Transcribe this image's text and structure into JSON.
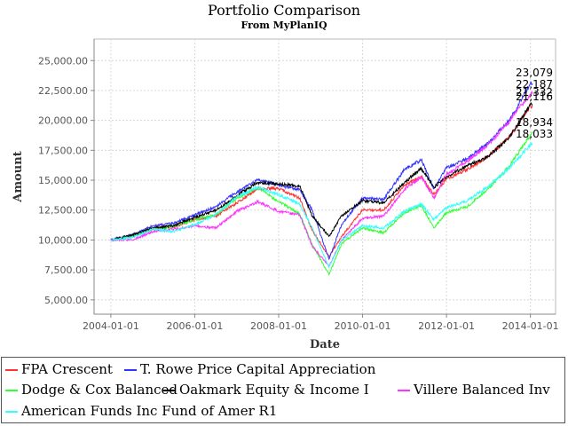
{
  "chart_data": {
    "type": "line",
    "title": "Portfolio Comparison",
    "subtitle": "From MyPlanIQ",
    "xlabel": "Date",
    "ylabel": "Amount",
    "x_ticks": [
      "2004-01-01",
      "2006-01-01",
      "2008-01-01",
      "2010-01-01",
      "2012-01-01",
      "2014-01-01"
    ],
    "x_tick_years": [
      2004,
      2006,
      2008,
      2010,
      2012,
      2014
    ],
    "x_range": [
      2003.6,
      2014.6
    ],
    "y_ticks": [
      "5,000.00",
      "7,500.00",
      "10,000.00",
      "12,500.00",
      "15,000.00",
      "17,500.00",
      "20,000.00",
      "22,500.00",
      "25,000.00"
    ],
    "y_tick_values": [
      5000,
      7500,
      10000,
      12500,
      15000,
      17500,
      20000,
      22500,
      25000
    ],
    "ylim": [
      3800,
      26800
    ],
    "grid": true,
    "legend_position": "bottom",
    "end_labels": [
      "23,079",
      "22,187",
      "21,332",
      "21,116",
      "18,934",
      "18,033"
    ],
    "series": [
      {
        "name": "FPA Crescent",
        "color": "#ff3333",
        "end_label": "21,116",
        "points": [
          [
            2004.0,
            10000
          ],
          [
            2004.5,
            10300
          ],
          [
            2005.0,
            11000
          ],
          [
            2005.5,
            11100
          ],
          [
            2006.0,
            11700
          ],
          [
            2006.5,
            12000
          ],
          [
            2007.0,
            13100
          ],
          [
            2007.5,
            14300
          ],
          [
            2008.0,
            14300
          ],
          [
            2008.5,
            13500
          ],
          [
            2008.8,
            10800
          ],
          [
            2009.2,
            8600
          ],
          [
            2009.5,
            10300
          ],
          [
            2010.0,
            12500
          ],
          [
            2010.5,
            12500
          ],
          [
            2011.0,
            14600
          ],
          [
            2011.4,
            15300
          ],
          [
            2011.7,
            13800
          ],
          [
            2012.0,
            15100
          ],
          [
            2012.5,
            15900
          ],
          [
            2013.0,
            17000
          ],
          [
            2013.5,
            18600
          ],
          [
            2014.0,
            21200
          ],
          [
            2014.05,
            21116
          ]
        ]
      },
      {
        "name": "T. Rowe Price Capital Appreciation",
        "color": "#3333ff",
        "end_label": "23,079",
        "points": [
          [
            2004.0,
            10000
          ],
          [
            2004.5,
            10400
          ],
          [
            2005.0,
            11200
          ],
          [
            2005.5,
            11400
          ],
          [
            2006.0,
            12100
          ],
          [
            2006.5,
            12800
          ],
          [
            2007.0,
            14000
          ],
          [
            2007.5,
            15000
          ],
          [
            2008.0,
            14600
          ],
          [
            2008.5,
            14200
          ],
          [
            2008.8,
            12500
          ],
          [
            2009.2,
            8400
          ],
          [
            2009.5,
            11300
          ],
          [
            2010.0,
            13500
          ],
          [
            2010.5,
            13400
          ],
          [
            2011.0,
            15900
          ],
          [
            2011.4,
            16700
          ],
          [
            2011.7,
            14300
          ],
          [
            2012.0,
            16000
          ],
          [
            2012.5,
            16800
          ],
          [
            2013.0,
            18100
          ],
          [
            2013.5,
            20000
          ],
          [
            2014.0,
            23100
          ],
          [
            2014.05,
            23079
          ]
        ]
      },
      {
        "name": "Dodge & Cox Balanced",
        "color": "#33ff33",
        "end_label": "18,934",
        "points": [
          [
            2004.0,
            10000
          ],
          [
            2004.5,
            10300
          ],
          [
            2005.0,
            10900
          ],
          [
            2005.5,
            11100
          ],
          [
            2006.0,
            11700
          ],
          [
            2006.5,
            12100
          ],
          [
            2007.0,
            13500
          ],
          [
            2007.5,
            14400
          ],
          [
            2008.0,
            13200
          ],
          [
            2008.5,
            12200
          ],
          [
            2008.8,
            9600
          ],
          [
            2009.2,
            7100
          ],
          [
            2009.5,
            9700
          ],
          [
            2010.0,
            11000
          ],
          [
            2010.5,
            10600
          ],
          [
            2011.0,
            12300
          ],
          [
            2011.4,
            12900
          ],
          [
            2011.7,
            11000
          ],
          [
            2012.0,
            12300
          ],
          [
            2012.5,
            12800
          ],
          [
            2013.0,
            14300
          ],
          [
            2013.5,
            16200
          ],
          [
            2014.0,
            18800
          ],
          [
            2014.05,
            18934
          ]
        ]
      },
      {
        "name": "Oakmark Equity & Income I",
        "color": "#000000",
        "end_label": "21,332",
        "points": [
          [
            2004.0,
            10000
          ],
          [
            2004.5,
            10400
          ],
          [
            2005.0,
            11000
          ],
          [
            2005.5,
            11200
          ],
          [
            2006.0,
            11900
          ],
          [
            2006.5,
            12500
          ],
          [
            2007.0,
            13700
          ],
          [
            2007.5,
            14800
          ],
          [
            2008.0,
            14700
          ],
          [
            2008.5,
            14500
          ],
          [
            2008.8,
            12000
          ],
          [
            2009.2,
            10300
          ],
          [
            2009.5,
            12000
          ],
          [
            2010.0,
            13300
          ],
          [
            2010.5,
            13100
          ],
          [
            2011.0,
            14800
          ],
          [
            2011.4,
            16000
          ],
          [
            2011.7,
            14400
          ],
          [
            2012.0,
            15300
          ],
          [
            2012.5,
            16200
          ],
          [
            2013.0,
            17000
          ],
          [
            2013.5,
            18600
          ],
          [
            2014.0,
            21300
          ],
          [
            2014.05,
            21332
          ]
        ]
      },
      {
        "name": "Villere Balanced Inv",
        "color": "#ff33ff",
        "end_label": "22,187",
        "points": [
          [
            2004.0,
            10000
          ],
          [
            2004.5,
            10000
          ],
          [
            2005.0,
            10700
          ],
          [
            2005.5,
            10900
          ],
          [
            2006.0,
            11200
          ],
          [
            2006.5,
            11000
          ],
          [
            2007.0,
            12400
          ],
          [
            2007.5,
            13200
          ],
          [
            2008.0,
            12400
          ],
          [
            2008.5,
            12100
          ],
          [
            2008.8,
            9500
          ],
          [
            2009.2,
            7800
          ],
          [
            2009.5,
            10000
          ],
          [
            2010.0,
            11800
          ],
          [
            2010.5,
            12000
          ],
          [
            2011.0,
            14200
          ],
          [
            2011.4,
            15300
          ],
          [
            2011.7,
            13500
          ],
          [
            2012.0,
            15500
          ],
          [
            2012.5,
            16600
          ],
          [
            2013.0,
            18000
          ],
          [
            2013.5,
            19900
          ],
          [
            2014.0,
            22200
          ],
          [
            2014.05,
            22187
          ]
        ]
      },
      {
        "name": "American Funds Inc Fund of Amer R1",
        "color": "#33ffff",
        "end_label": "18,033",
        "points": [
          [
            2004.0,
            10000
          ],
          [
            2004.5,
            10200
          ],
          [
            2005.0,
            10900
          ],
          [
            2005.5,
            10700
          ],
          [
            2006.0,
            11300
          ],
          [
            2006.5,
            12100
          ],
          [
            2007.0,
            13600
          ],
          [
            2007.5,
            14400
          ],
          [
            2008.0,
            13800
          ],
          [
            2008.5,
            13000
          ],
          [
            2008.8,
            11000
          ],
          [
            2009.2,
            7700
          ],
          [
            2009.5,
            10000
          ],
          [
            2010.0,
            11200
          ],
          [
            2010.5,
            11000
          ],
          [
            2011.0,
            12400
          ],
          [
            2011.4,
            13000
          ],
          [
            2011.7,
            11700
          ],
          [
            2012.0,
            12700
          ],
          [
            2012.5,
            13300
          ],
          [
            2013.0,
            14500
          ],
          [
            2013.5,
            16000
          ],
          [
            2014.0,
            18000
          ],
          [
            2014.05,
            18033
          ]
        ]
      }
    ]
  }
}
